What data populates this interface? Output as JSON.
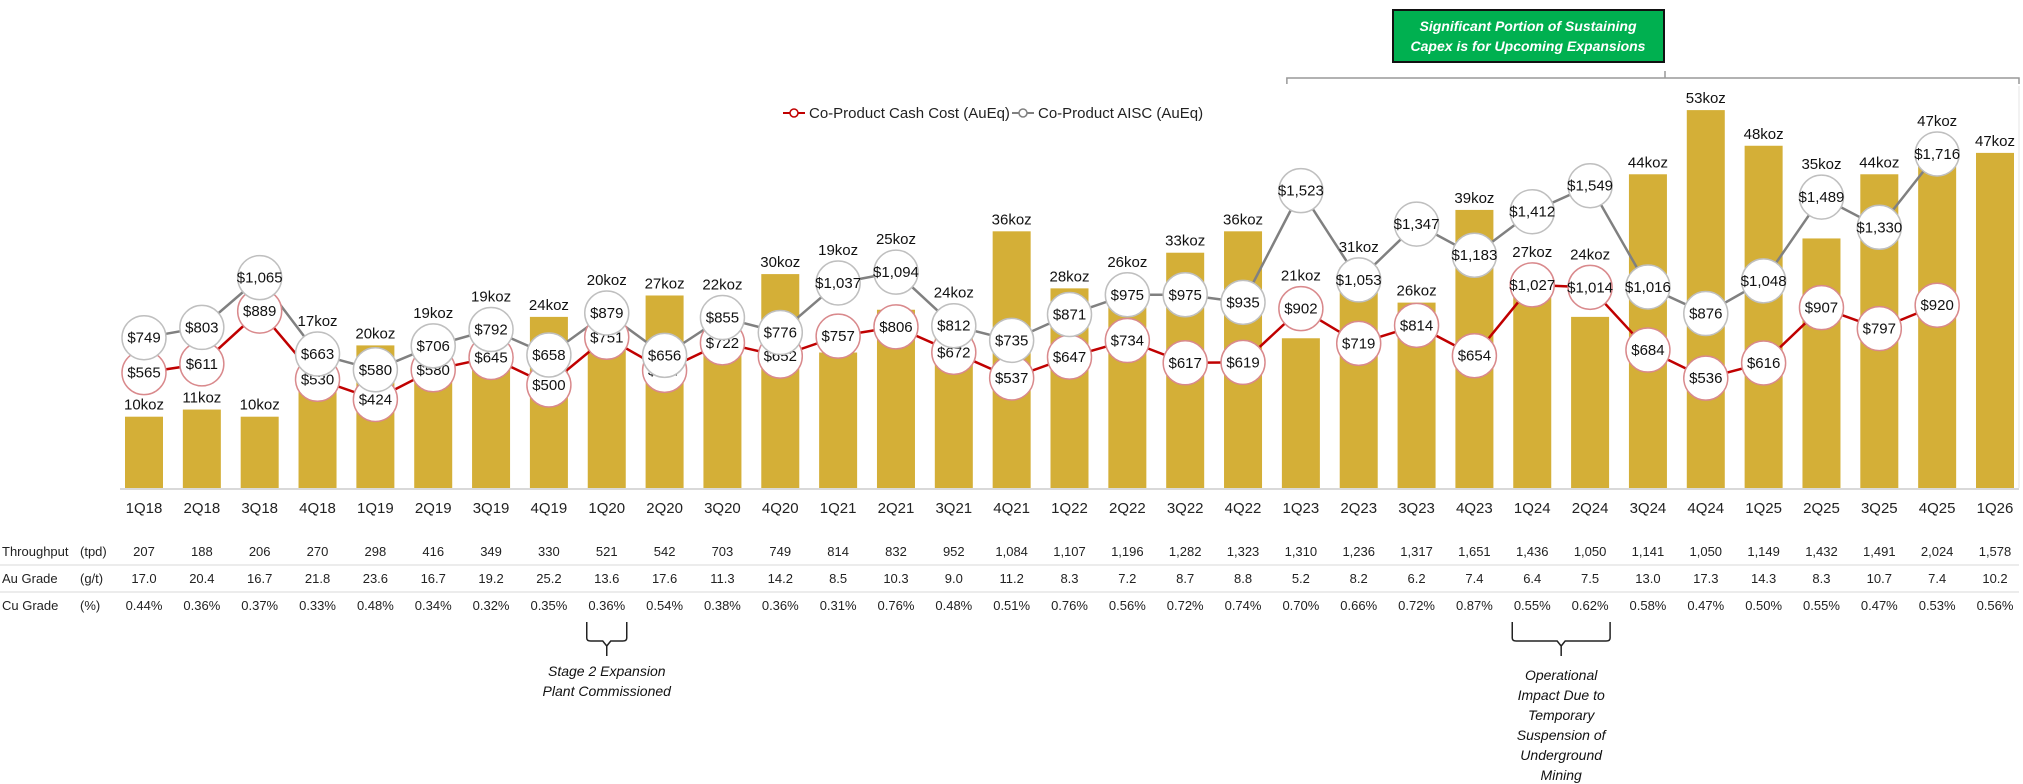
{
  "chart_data": {
    "type": "bar",
    "categories": [
      "1Q18",
      "2Q18",
      "3Q18",
      "4Q18",
      "1Q19",
      "2Q19",
      "3Q19",
      "4Q19",
      "1Q20",
      "2Q20",
      "3Q20",
      "4Q20",
      "1Q21",
      "2Q21",
      "3Q21",
      "4Q21",
      "1Q22",
      "2Q22",
      "3Q22",
      "4Q22",
      "1Q23",
      "2Q23",
      "3Q23",
      "4Q23",
      "1Q24",
      "2Q24",
      "3Q24",
      "4Q24",
      "1Q25",
      "2Q25",
      "3Q25",
      "4Q25",
      "1Q26"
    ],
    "bars": {
      "unit_suffix": "koz",
      "values": [
        10,
        11,
        10,
        17,
        20,
        19,
        19,
        24,
        20,
        27,
        22,
        30,
        19,
        25,
        24,
        36,
        28,
        26,
        33,
        36,
        21,
        31,
        26,
        39,
        27,
        24,
        44,
        53,
        48,
        35,
        44,
        47,
        47
      ],
      "color": "#D4AF37"
    },
    "series": [
      {
        "name": "Co-Product Cash Cost (AuEq)",
        "type": "line",
        "color": "#C00000",
        "marker_border": "#D9898C",
        "values": [
          565,
          611,
          889,
          530,
          424,
          580,
          645,
          500,
          751,
          577,
          722,
          652,
          757,
          806,
          672,
          537,
          647,
          734,
          617,
          619,
          902,
          719,
          814,
          654,
          1027,
          1014,
          684,
          536,
          616,
          907,
          797,
          920,
          null
        ]
      },
      {
        "name": "Co-Product AISC (AuEq)",
        "type": "line",
        "color": "#808080",
        "marker_border": "#BFBFBF",
        "values": [
          749,
          803,
          1065,
          663,
          580,
          706,
          792,
          658,
          879,
          656,
          855,
          776,
          1037,
          1094,
          812,
          735,
          871,
          975,
          975,
          935,
          1523,
          1053,
          1347,
          1183,
          1412,
          1549,
          1016,
          876,
          1048,
          1489,
          1330,
          1716,
          null
        ]
      }
    ],
    "legend_placement": "top-center",
    "grid": false,
    "table": [
      {
        "label": "Throughput",
        "unit": "(tpd)",
        "values": [
          "207",
          "188",
          "206",
          "270",
          "298",
          "416",
          "349",
          "330",
          "521",
          "542",
          "703",
          "749",
          "814",
          "832",
          "952",
          "1,084",
          "1,107",
          "1,196",
          "1,282",
          "1,323",
          "1,310",
          "1,236",
          "1,317",
          "1,651",
          "1,436",
          "1,050",
          "1,141",
          "1,050",
          "1,149",
          "1,432",
          "1,491",
          "2,024",
          "1,578"
        ]
      },
      {
        "label": "Au Grade",
        "unit": "(g/t)",
        "values": [
          "17.0",
          "20.4",
          "16.7",
          "21.8",
          "23.6",
          "16.7",
          "19.2",
          "25.2",
          "13.6",
          "17.6",
          "11.3",
          "14.2",
          "8.5",
          "10.3",
          "9.0",
          "11.2",
          "8.3",
          "7.2",
          "8.7",
          "8.8",
          "5.2",
          "8.2",
          "6.2",
          "7.4",
          "6.4",
          "7.5",
          "13.0",
          "17.3",
          "14.3",
          "8.3",
          "10.7",
          "7.4",
          "10.2"
        ]
      },
      {
        "label": "Cu Grade",
        "unit": "(%)",
        "values": [
          "0.44%",
          "0.36%",
          "0.37%",
          "0.33%",
          "0.48%",
          "0.34%",
          "0.32%",
          "0.35%",
          "0.36%",
          "0.54%",
          "0.38%",
          "0.36%",
          "0.31%",
          "0.76%",
          "0.48%",
          "0.51%",
          "0.76%",
          "0.56%",
          "0.72%",
          "0.74%",
          "0.70%",
          "0.66%",
          "0.72%",
          "0.87%",
          "0.55%",
          "0.62%",
          "0.58%",
          "0.47%",
          "0.50%",
          "0.55%",
          "0.47%",
          "0.53%",
          "0.56%"
        ]
      }
    ],
    "annotations": {
      "callout": {
        "lines": [
          "Significant Portion of Sustaining",
          "Capex is for Upcoming Expansions"
        ],
        "color": "#00B050",
        "spans": [
          "1Q23",
          "1Q26"
        ]
      },
      "stage2": {
        "lines": [
          "Stage 2 Expansion",
          "Plant Commissioned"
        ],
        "spans": [
          "1Q20",
          "1Q20"
        ]
      },
      "suspension": {
        "lines": [
          "Operational",
          "Impact Due to",
          "Temporary",
          "Suspension of",
          "Underground",
          "Mining"
        ],
        "spans": [
          "1Q24",
          "2Q24"
        ]
      }
    }
  }
}
